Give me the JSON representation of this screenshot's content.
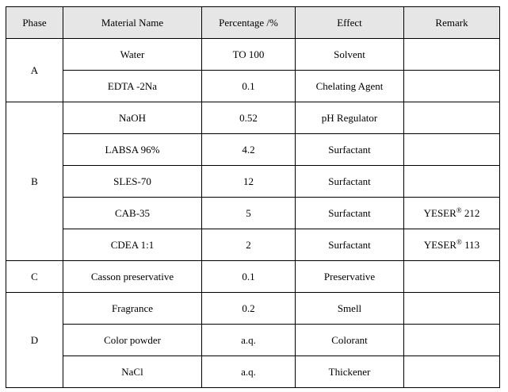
{
  "headers": {
    "phase": "Phase",
    "material": "Material Name",
    "percentage": "Percentage /%",
    "effect": "Effect",
    "remark": "Remark"
  },
  "groups": [
    {
      "phase": "A",
      "rows": [
        {
          "material": "Water",
          "percentage": "TO 100",
          "effect": "Solvent",
          "remark": ""
        },
        {
          "material": "EDTA -2Na",
          "percentage": "0.1",
          "effect": "Chelating Agent",
          "remark": ""
        }
      ]
    },
    {
      "phase": "B",
      "rows": [
        {
          "material": "NaOH",
          "percentage": "0.52",
          "effect": "pH Regulator",
          "remark": ""
        },
        {
          "material": "LABSA 96%",
          "percentage": "4.2",
          "effect": "Surfactant",
          "remark": ""
        },
        {
          "material": "SLES-70",
          "percentage": "12",
          "effect": "Surfactant",
          "remark": ""
        },
        {
          "material": "CAB-35",
          "percentage": "5",
          "effect": "Surfactant",
          "remark": "YESER",
          "remark_sup": "®",
          "remark_suffix": " 212"
        },
        {
          "material": "CDEA 1:1",
          "percentage": "2",
          "effect": "Surfactant",
          "remark": "YESER",
          "remark_sup": "®",
          "remark_suffix": " 113"
        }
      ]
    },
    {
      "phase": "C",
      "rows": [
        {
          "material": "Casson preservative",
          "percentage": "0.1",
          "effect": "Preservative",
          "remark": ""
        }
      ]
    },
    {
      "phase": "D",
      "rows": [
        {
          "material": "Fragrance",
          "percentage": "0.2",
          "effect": "Smell",
          "remark": ""
        },
        {
          "material": "Color powder",
          "percentage": "a.q.",
          "effect": "Colorant",
          "remark": ""
        },
        {
          "material": "NaCl",
          "percentage": "a.q.",
          "effect": "Thickener",
          "remark": ""
        }
      ]
    }
  ]
}
